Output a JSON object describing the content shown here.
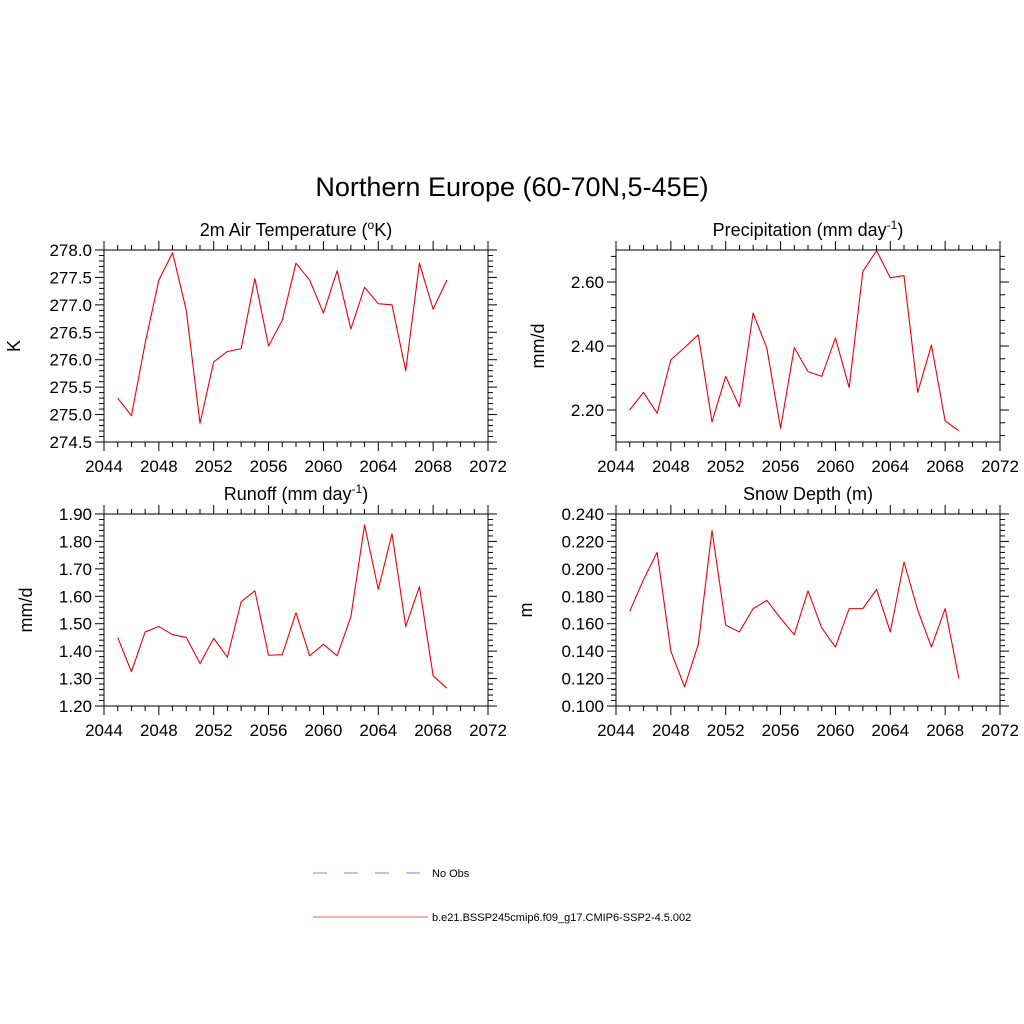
{
  "figure": {
    "title": "Northern Europe (60-70N,5-45E)"
  },
  "colors": {
    "model_line": "#e8000b",
    "obs_line": "#9b9bf0",
    "model_legend_line": "#f08080",
    "axes": "#000000"
  },
  "chart_data": [
    {
      "type": "line",
      "title_main": "2m Air Temperature (",
      "title_sup": "o",
      "title_tail": "K)",
      "ylabel": "K",
      "xlim": [
        2044,
        2072
      ],
      "ylim": [
        274.5,
        278.0
      ],
      "xticks": [
        2044,
        2048,
        2052,
        2056,
        2060,
        2064,
        2068,
        2072
      ],
      "yticks": [
        274.5,
        275.0,
        275.5,
        276.0,
        276.5,
        277.0,
        277.5,
        278.0
      ],
      "ytick_labels": [
        "274.5",
        "275.0",
        "275.5",
        "276.0",
        "276.5",
        "277.0",
        "277.5",
        "278.0"
      ],
      "series": [
        {
          "name": "b.e21.BSSP245cmip6.f09_g17.CMIP6-SSP2-4.5.002",
          "x": [
            2045,
            2046,
            2047,
            2048,
            2049,
            2050,
            2051,
            2052,
            2053,
            2054,
            2055,
            2056,
            2057,
            2058,
            2059,
            2060,
            2061,
            2062,
            2063,
            2064,
            2065,
            2066,
            2067,
            2068,
            2069
          ],
          "y": [
            275.3,
            274.98,
            276.3,
            277.45,
            277.95,
            276.9,
            274.84,
            275.96,
            276.15,
            276.2,
            277.48,
            276.25,
            276.72,
            277.76,
            277.45,
            276.85,
            277.62,
            276.56,
            277.32,
            277.02,
            277.0,
            275.8,
            277.76,
            276.92,
            277.45
          ]
        }
      ]
    },
    {
      "type": "line",
      "title_main": "Precipitation (mm day",
      "title_sup": "-1",
      "title_tail": ")",
      "ylabel": "mm/d",
      "xlim": [
        2044,
        2072
      ],
      "ylim": [
        2.1,
        2.7
      ],
      "xticks": [
        2044,
        2048,
        2052,
        2056,
        2060,
        2064,
        2068,
        2072
      ],
      "yticks": [
        2.2,
        2.4,
        2.6
      ],
      "ytick_labels": [
        "2.20",
        "2.40",
        "2.60"
      ],
      "series": [
        {
          "name": "b.e21.BSSP245cmip6.f09_g17.CMIP6-SSP2-4.5.002",
          "x": [
            2045,
            2046,
            2047,
            2048,
            2049,
            2050,
            2051,
            2052,
            2053,
            2054,
            2055,
            2056,
            2057,
            2058,
            2059,
            2060,
            2061,
            2062,
            2063,
            2064,
            2065,
            2066,
            2067,
            2068,
            2069
          ],
          "y": [
            2.2,
            2.255,
            2.19,
            2.357,
            2.395,
            2.435,
            2.163,
            2.305,
            2.21,
            2.503,
            2.393,
            2.143,
            2.395,
            2.32,
            2.305,
            2.425,
            2.27,
            2.633,
            2.698,
            2.613,
            2.62,
            2.255,
            2.403,
            2.166,
            2.135
          ]
        }
      ]
    },
    {
      "type": "line",
      "title_main": "Runoff (mm day",
      "title_sup": "-1",
      "title_tail": ")",
      "ylabel": "mm/d",
      "xlim": [
        2044,
        2072
      ],
      "ylim": [
        1.2,
        1.9
      ],
      "xticks": [
        2044,
        2048,
        2052,
        2056,
        2060,
        2064,
        2068,
        2072
      ],
      "yticks": [
        1.2,
        1.3,
        1.4,
        1.5,
        1.6,
        1.7,
        1.8,
        1.9
      ],
      "ytick_labels": [
        "1.20",
        "1.30",
        "1.40",
        "1.50",
        "1.60",
        "1.70",
        "1.80",
        "1.90"
      ],
      "series": [
        {
          "name": "b.e21.BSSP245cmip6.f09_g17.CMIP6-SSP2-4.5.002",
          "x": [
            2045,
            2046,
            2047,
            2048,
            2049,
            2050,
            2051,
            2052,
            2053,
            2054,
            2055,
            2056,
            2057,
            2058,
            2059,
            2060,
            2061,
            2062,
            2063,
            2064,
            2065,
            2066,
            2067,
            2068,
            2069
          ],
          "y": [
            1.45,
            1.325,
            1.47,
            1.49,
            1.46,
            1.45,
            1.355,
            1.447,
            1.378,
            1.58,
            1.62,
            1.385,
            1.387,
            1.54,
            1.383,
            1.425,
            1.383,
            1.525,
            1.86,
            1.625,
            1.828,
            1.49,
            1.635,
            1.31,
            1.265
          ]
        }
      ]
    },
    {
      "type": "line",
      "title_main": "Snow Depth (m)",
      "title_sup": "",
      "title_tail": "",
      "ylabel": "m",
      "xlim": [
        2044,
        2072
      ],
      "ylim": [
        0.1,
        0.24
      ],
      "xticks": [
        2044,
        2048,
        2052,
        2056,
        2060,
        2064,
        2068,
        2072
      ],
      "yticks": [
        0.1,
        0.12,
        0.14,
        0.16,
        0.18,
        0.2,
        0.22,
        0.24
      ],
      "ytick_labels": [
        "0.100",
        "0.120",
        "0.140",
        "0.160",
        "0.180",
        "0.200",
        "0.220",
        "0.240"
      ],
      "series": [
        {
          "name": "b.e21.BSSP245cmip6.f09_g17.CMIP6-SSP2-4.5.002",
          "x": [
            2045,
            2046,
            2047,
            2048,
            2049,
            2050,
            2051,
            2052,
            2053,
            2054,
            2055,
            2056,
            2057,
            2058,
            2059,
            2060,
            2061,
            2062,
            2063,
            2064,
            2065,
            2066,
            2067,
            2068,
            2069
          ],
          "y": [
            0.169,
            0.192,
            0.212,
            0.14,
            0.114,
            0.145,
            0.228,
            0.159,
            0.154,
            0.171,
            0.177,
            0.164,
            0.152,
            0.184,
            0.157,
            0.143,
            0.171,
            0.171,
            0.185,
            0.154,
            0.205,
            0.17,
            0.143,
            0.171,
            0.12
          ]
        }
      ]
    }
  ],
  "legend": {
    "obs_label": "No Obs",
    "model_label": "b.e21.BSSP245cmip6.f09_g17.CMIP6-SSP2-4.5.002"
  }
}
